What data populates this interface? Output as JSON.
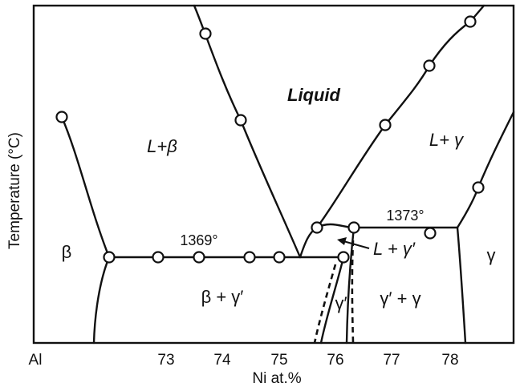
{
  "axes": {
    "x_title": "Ni at.%",
    "y_title": "Temperature (°C)",
    "x_ticks": [
      "Al",
      "73",
      "74",
      "75",
      "76",
      "77",
      "78"
    ]
  },
  "regions": {
    "liquid": "Liquid",
    "l_beta": "L+β",
    "l_gamma": "L+ γ",
    "beta": "β",
    "gamma": "γ",
    "beta_gamma_prime": "β + γ′",
    "gamma_prime": "γ′",
    "gamma_prime_gamma": "γ′ + γ",
    "l_gamma_prime": "L + γ′"
  },
  "temperatures": {
    "eutectic": "1369°",
    "peritectic": "1373°"
  },
  "colors": {
    "line": "#111111",
    "background": "#ffffff"
  }
}
